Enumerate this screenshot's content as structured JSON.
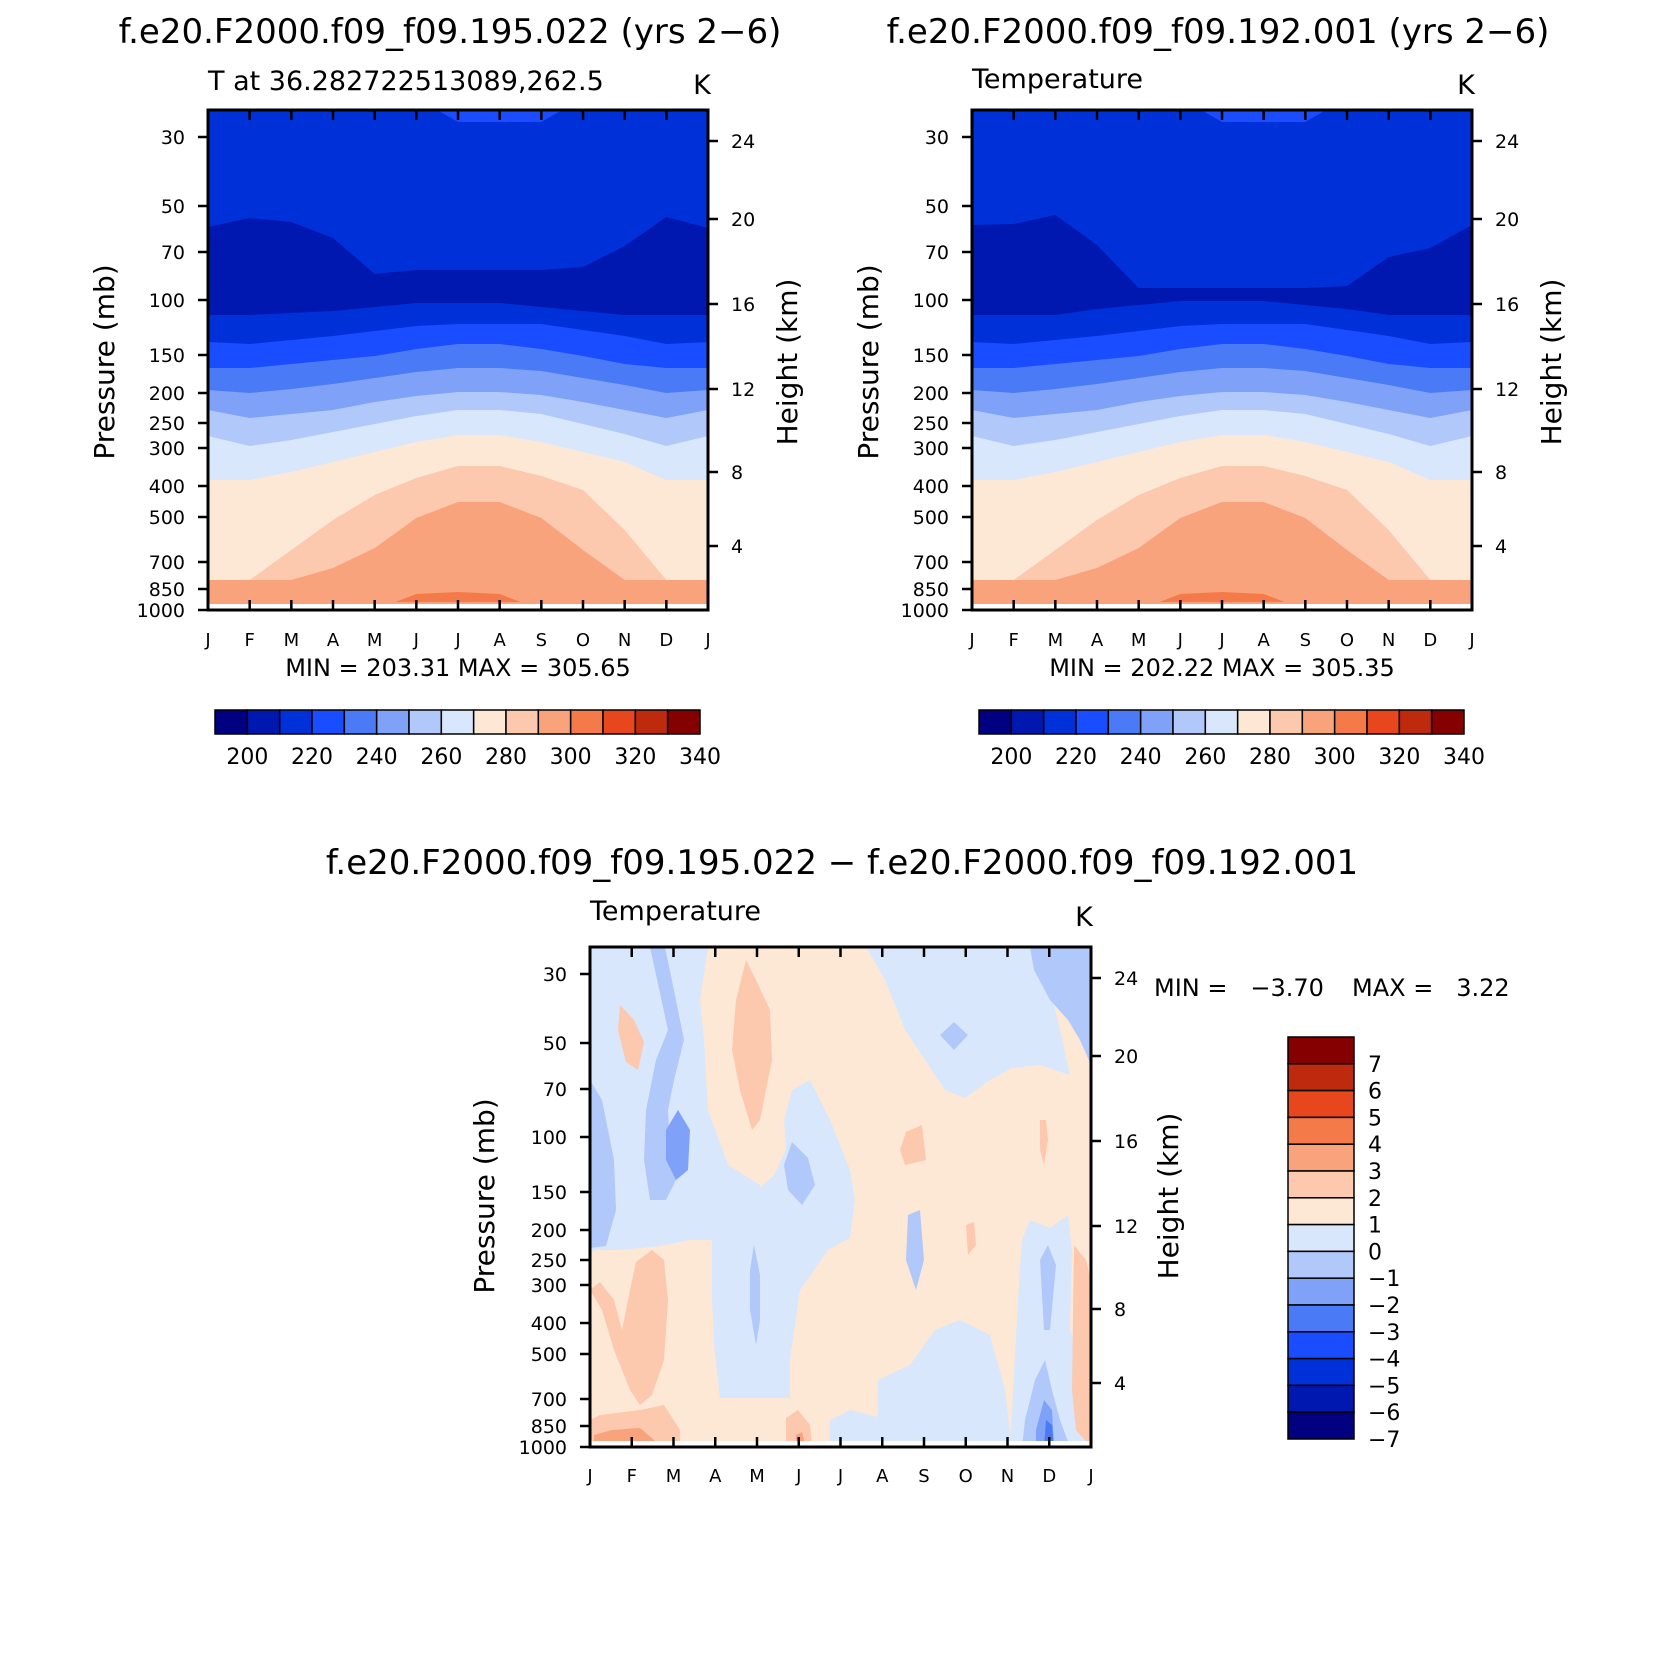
{
  "colors": {
    "abs_levels": [
      200,
      210,
      220,
      230,
      240,
      250,
      260,
      270,
      280,
      290,
      300,
      310,
      320,
      330,
      340
    ],
    "abs_fill": [
      "#000080",
      "#0018b0",
      "#0030d8",
      "#1a4dff",
      "#4a7af5",
      "#7fa2f8",
      "#b1c8fb",
      "#d8e7fb",
      "#fde8d6",
      "#fcc8ae",
      "#f9a37c",
      "#f57a4a",
      "#e8471e",
      "#bd2a0d",
      "#850000"
    ],
    "diff_fill": [
      "#000080",
      "#0018b0",
      "#0030d8",
      "#1a4dff",
      "#4a7af5",
      "#7fa2f8",
      "#b1c8fb",
      "#d8e7fb",
      "#fde8d6",
      "#fcc8ae",
      "#f9a37c",
      "#f57a4a",
      "#e8471e",
      "#bd2a0d",
      "#850000"
    ]
  },
  "chart_data": [
    {
      "type": "heatmap",
      "title": "f.e20.F2000.f09_f09.195.022 (yrs 2−6)",
      "subtitle_left": "T at 36.282722513089,262.5",
      "subtitle_right": "K",
      "ylabel": "Pressure (mb)",
      "ylabel_right": "Height (km)",
      "x_ticks": [
        "J",
        "F",
        "M",
        "A",
        "M",
        "J",
        "J",
        "A",
        "S",
        "O",
        "N",
        "D",
        "J"
      ],
      "y_ticks": [
        30,
        50,
        70,
        100,
        150,
        200,
        250,
        300,
        400,
        500,
        700,
        850,
        1000
      ],
      "y_ticks_right": [
        24,
        20,
        16,
        12,
        8,
        4
      ],
      "stats": "MIN = 203.31 MAX = 305.65",
      "min": 203.31,
      "max": 305.65,
      "colorbar_labels": [
        "200",
        "220",
        "240",
        "260",
        "280",
        "300",
        "320",
        "340"
      ],
      "bands": [
        {
          "level": 220,
          "color_index": 2,
          "boundary": [
            60,
            62,
            56,
            57,
            60,
            64,
            68,
            70,
            69,
            68,
            64,
            56,
            58
          ]
        },
        {
          "level": 210,
          "color_index": 1,
          "boundary": [
            117,
            108,
            112,
            128,
            164,
            160,
            160,
            160,
            160,
            157,
            136,
            107,
            118
          ]
        },
        {
          "level": 220,
          "color_index": 2,
          "boundary": [
            205,
            205,
            203,
            201,
            197,
            193,
            193,
            193,
            197,
            201,
            205,
            205,
            205
          ]
        },
        {
          "level": 230,
          "color_index": 3,
          "boundary": [
            232,
            234,
            230,
            226,
            221,
            216,
            214,
            214,
            214,
            220,
            226,
            234,
            232
          ]
        },
        {
          "level": 240,
          "color_index": 4,
          "boundary": [
            258,
            258,
            254,
            250,
            246,
            239,
            234,
            234,
            239,
            246,
            254,
            258,
            258
          ]
        },
        {
          "level": 250,
          "color_index": 5,
          "boundary": [
            280,
            283,
            279,
            274,
            268,
            262,
            258,
            258,
            261,
            268,
            275,
            283,
            280
          ]
        },
        {
          "level": 260,
          "color_index": 6,
          "boundary": [
            300,
            308,
            304,
            300,
            292,
            286,
            282,
            282,
            285,
            292,
            300,
            308,
            300
          ]
        },
        {
          "level": 270,
          "color_index": 7,
          "boundary": [
            326,
            336,
            330,
            322,
            314,
            306,
            300,
            300,
            304,
            314,
            324,
            336,
            326
          ]
        },
        {
          "level": 280,
          "color_index": 8,
          "boundary": [
            370,
            370,
            362,
            352,
            342,
            332,
            325,
            325,
            332,
            342,
            352,
            370,
            370
          ]
        },
        {
          "level": 290,
          "color_index": 9,
          "boundary": [
            470,
            470,
            440,
            410,
            385,
            368,
            356,
            356,
            366,
            380,
            420,
            470,
            470
          ]
        },
        {
          "level": 300,
          "color_index": 10,
          "boundary": [
            470,
            470,
            470,
            458,
            438,
            408,
            392,
            392,
            408,
            440,
            470,
            470,
            470
          ]
        }
      ]
    },
    {
      "type": "heatmap",
      "title": "f.e20.F2000.f09_f09.192.001 (yrs 2−6)",
      "subtitle_left": "Temperature",
      "subtitle_right": "K",
      "ylabel": "Pressure (mb)",
      "ylabel_right": "Height (km)",
      "x_ticks": [
        "J",
        "F",
        "M",
        "A",
        "M",
        "J",
        "J",
        "A",
        "S",
        "O",
        "N",
        "D",
        "J"
      ],
      "y_ticks": [
        30,
        50,
        70,
        100,
        150,
        200,
        250,
        300,
        400,
        500,
        700,
        850,
        1000
      ],
      "y_ticks_right": [
        24,
        20,
        16,
        12,
        8,
        4
      ],
      "stats": "MIN = 202.22 MAX = 305.35",
      "min": 202.22,
      "max": 305.35,
      "colorbar_labels": [
        "200",
        "220",
        "240",
        "260",
        "280",
        "300",
        "320",
        "340"
      ],
      "bands": [
        {
          "level": 220,
          "color_index": 2,
          "boundary": [
            72,
            67,
            66,
            58,
            59,
            65,
            70,
            70,
            70,
            74,
            66,
            62,
            64
          ]
        },
        {
          "level": 210,
          "color_index": 1,
          "boundary": [
            115,
            114,
            105,
            135,
            178,
            178,
            178,
            178,
            178,
            176,
            147,
            138,
            115
          ]
        },
        {
          "level": 220,
          "color_index": 2,
          "boundary": [
            205,
            205,
            205,
            199,
            195,
            191,
            191,
            191,
            195,
            199,
            205,
            205,
            205
          ]
        },
        {
          "level": 230,
          "color_index": 3,
          "boundary": [
            232,
            234,
            230,
            226,
            221,
            216,
            214,
            214,
            214,
            220,
            226,
            234,
            232
          ]
        },
        {
          "level": 240,
          "color_index": 4,
          "boundary": [
            258,
            258,
            254,
            250,
            246,
            239,
            234,
            234,
            239,
            246,
            254,
            258,
            258
          ]
        },
        {
          "level": 250,
          "color_index": 5,
          "boundary": [
            280,
            283,
            279,
            274,
            268,
            262,
            258,
            258,
            261,
            268,
            275,
            283,
            280
          ]
        },
        {
          "level": 260,
          "color_index": 6,
          "boundary": [
            300,
            308,
            304,
            300,
            292,
            286,
            282,
            282,
            285,
            292,
            300,
            308,
            300
          ]
        },
        {
          "level": 270,
          "color_index": 7,
          "boundary": [
            326,
            336,
            330,
            322,
            314,
            306,
            300,
            300,
            304,
            314,
            324,
            336,
            326
          ]
        },
        {
          "level": 280,
          "color_index": 8,
          "boundary": [
            370,
            370,
            362,
            352,
            342,
            332,
            325,
            325,
            332,
            342,
            352,
            370,
            370
          ]
        },
        {
          "level": 290,
          "color_index": 9,
          "boundary": [
            470,
            470,
            440,
            410,
            385,
            368,
            356,
            356,
            366,
            380,
            420,
            470,
            470
          ]
        },
        {
          "level": 300,
          "color_index": 10,
          "boundary": [
            470,
            470,
            470,
            458,
            438,
            408,
            392,
            392,
            408,
            440,
            470,
            470,
            470
          ]
        }
      ]
    },
    {
      "type": "heatmap",
      "title": "f.e20.F2000.f09_f09.195.022 − f.e20.F2000.f09_f09.192.001",
      "subtitle_left": "Temperature",
      "subtitle_right": "K",
      "ylabel": "Pressure (mb)",
      "ylabel_right": "Height (km)",
      "x_ticks": [
        "J",
        "F",
        "M",
        "A",
        "M",
        "J",
        "J",
        "A",
        "S",
        "O",
        "N",
        "D",
        "J"
      ],
      "y_ticks": [
        30,
        50,
        70,
        100,
        150,
        200,
        250,
        300,
        400,
        500,
        700,
        850,
        1000
      ],
      "y_ticks_right": [
        24,
        20,
        16,
        12,
        8,
        4
      ],
      "stats_min": "MIN =   −3.70",
      "stats_max": "MAX =   3.22",
      "min": -3.7,
      "max": 3.22,
      "colorbar_labels": [
        "7",
        "6",
        "5",
        "4",
        "3",
        "2",
        "1",
        "0",
        "−1",
        "−2",
        "−3",
        "−4",
        "−5",
        "−6",
        "−7"
      ]
    }
  ]
}
